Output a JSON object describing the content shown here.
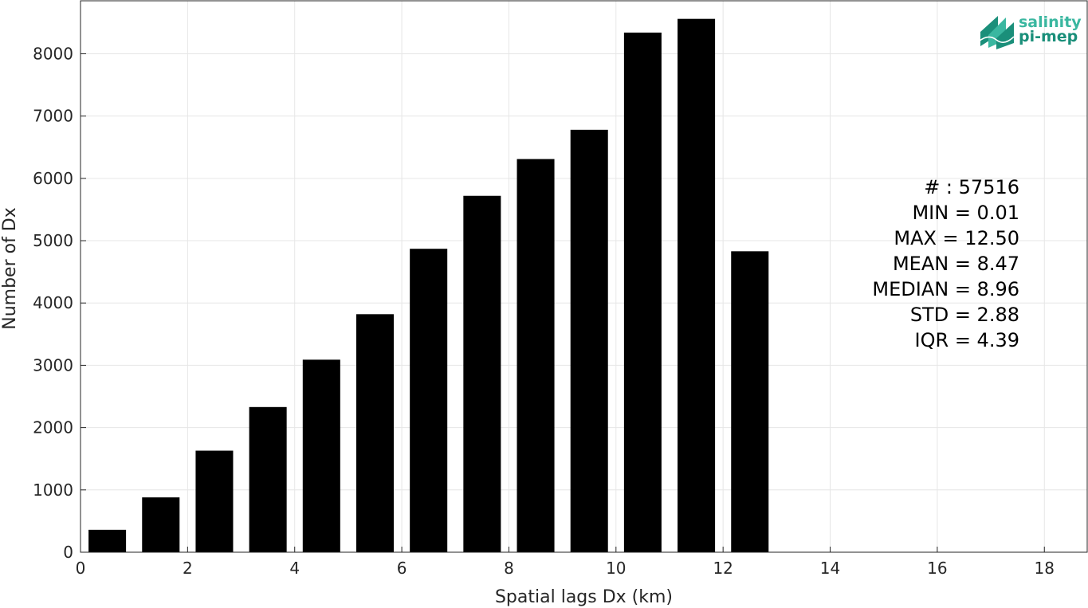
{
  "chart_data": {
    "type": "bar",
    "title": "",
    "xlabel": "Spatial lags Dx (km)",
    "ylabel": "Number of Dx",
    "xlim": [
      0,
      18.8
    ],
    "ylim": [
      0,
      8850
    ],
    "grid": true,
    "x_ticks": [
      0,
      2,
      4,
      6,
      8,
      10,
      12,
      14,
      16,
      18
    ],
    "y_ticks": [
      0,
      1000,
      2000,
      3000,
      4000,
      5000,
      6000,
      7000,
      8000
    ],
    "bar_width": 0.7,
    "bar_color": "#000000",
    "x": [
      0.5,
      1.5,
      2.5,
      3.5,
      4.5,
      5.5,
      6.5,
      7.5,
      8.5,
      9.5,
      10.5,
      11.5,
      12.5
    ],
    "values": [
      360,
      880,
      1630,
      2330,
      3090,
      3820,
      4870,
      5720,
      6310,
      6780,
      8340,
      8560,
      4830
    ],
    "stats": [
      "# : 57516",
      "MIN = 0.01",
      "MAX =  12.50",
      "MEAN = 8.47",
      "MEDIAN = 8.96",
      "STD = 2.88",
      "IQR = 4.39"
    ]
  },
  "logo": {
    "line1": "salinity",
    "line2": "pi-mep",
    "color_dark": "#1a8f7a",
    "color_light": "#3ab7a0"
  }
}
